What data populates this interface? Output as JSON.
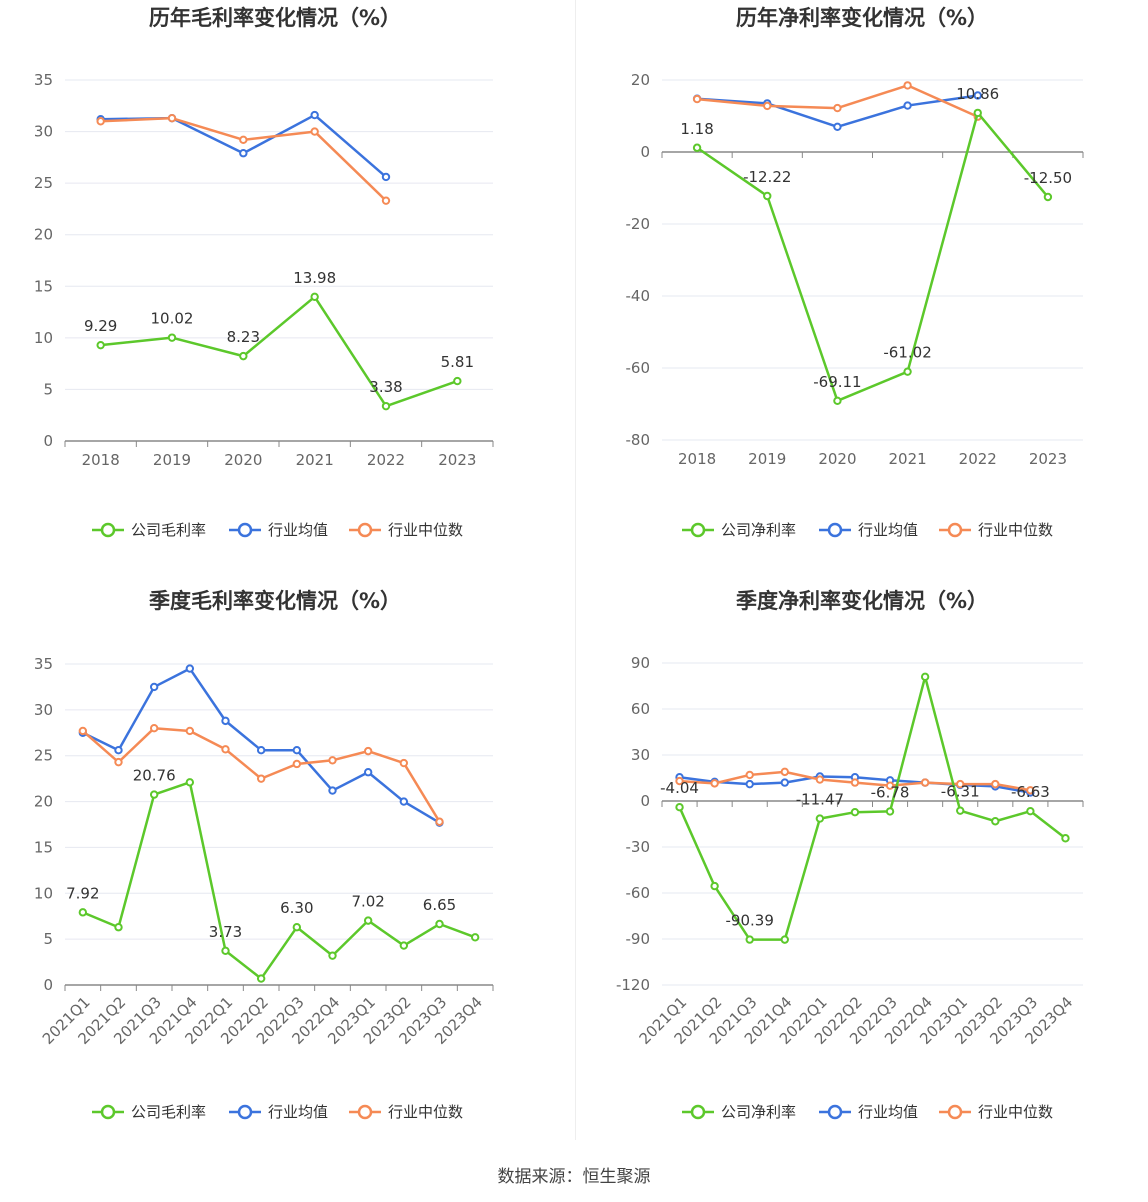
{
  "source_text": "数据来源：恒生聚源",
  "colors": {
    "company": "#5cc82b",
    "avg": "#3b73dd",
    "median": "#f58a55"
  },
  "chart_data": [
    {
      "type": "line",
      "title": "历年毛利率变化情况（%）",
      "x": [
        "2018",
        "2019",
        "2020",
        "2021",
        "2022",
        "2023"
      ],
      "ylim": [
        0,
        35
      ],
      "yticks": [
        0,
        5,
        10,
        15,
        20,
        25,
        30,
        35
      ],
      "grid": true,
      "legend": "bottom",
      "series": [
        {
          "name": "公司毛利率",
          "values": [
            9.29,
            10.02,
            8.23,
            13.98,
            3.38,
            5.81
          ],
          "labels": [
            "9.29",
            "10.02",
            "8.23",
            "13.98",
            "3.38",
            "5.81"
          ]
        },
        {
          "name": "行业均值",
          "values": [
            31.2,
            31.3,
            27.9,
            31.6,
            25.6,
            null
          ],
          "labels": []
        },
        {
          "name": "行业中位数",
          "values": [
            31.0,
            31.3,
            29.2,
            30.0,
            23.3,
            null
          ],
          "labels": []
        }
      ]
    },
    {
      "type": "line",
      "title": "历年净利率变化情况（%）",
      "x": [
        "2018",
        "2019",
        "2020",
        "2021",
        "2022",
        "2023"
      ],
      "ylim": [
        -80,
        20
      ],
      "yticks": [
        -80,
        -60,
        -40,
        -20,
        0,
        20
      ],
      "grid": true,
      "legend": "bottom",
      "series": [
        {
          "name": "公司净利率",
          "values": [
            1.18,
            -12.22,
            -69.11,
            -61.02,
            10.86,
            -12.5
          ],
          "labels": [
            "1.18",
            "-12.22",
            "-69.11",
            "-61.02",
            "10.86",
            "-12.50"
          ]
        },
        {
          "name": "行业均值",
          "values": [
            14.8,
            13.5,
            7.0,
            12.9,
            15.7,
            null
          ],
          "labels": []
        },
        {
          "name": "行业中位数",
          "values": [
            14.7,
            12.8,
            12.2,
            18.5,
            9.8,
            null
          ],
          "labels": []
        }
      ]
    },
    {
      "type": "line",
      "title": "季度毛利率变化情况（%）",
      "x": [
        "2021Q1",
        "2021Q2",
        "2021Q3",
        "2021Q4",
        "2022Q1",
        "2022Q2",
        "2022Q3",
        "2022Q4",
        "2023Q1",
        "2023Q2",
        "2023Q3",
        "2023Q4"
      ],
      "ylim": [
        0,
        35
      ],
      "yticks": [
        0,
        5,
        10,
        15,
        20,
        25,
        30,
        35
      ],
      "grid": true,
      "legend": "bottom",
      "series": [
        {
          "name": "公司毛利率",
          "values": [
            7.92,
            6.3,
            20.76,
            22.1,
            3.73,
            0.7,
            6.3,
            3.2,
            7.02,
            4.3,
            6.65,
            5.2
          ],
          "labels": [
            "7.92",
            "",
            "20.76",
            "",
            "3.73",
            "",
            "6.30",
            "",
            "7.02",
            "",
            "6.65",
            ""
          ]
        },
        {
          "name": "行业均值",
          "values": [
            27.5,
            25.6,
            32.5,
            34.5,
            28.8,
            25.6,
            25.6,
            21.2,
            23.2,
            20.0,
            17.7,
            null
          ],
          "labels": []
        },
        {
          "name": "行业中位数",
          "values": [
            27.7,
            24.3,
            28.0,
            27.7,
            25.7,
            22.5,
            24.1,
            24.5,
            25.5,
            24.2,
            17.8,
            null
          ],
          "labels": []
        }
      ]
    },
    {
      "type": "line",
      "title": "季度净利率变化情况（%）",
      "x": [
        "2021Q1",
        "2021Q2",
        "2021Q3",
        "2021Q4",
        "2022Q1",
        "2022Q2",
        "2022Q3",
        "2022Q4",
        "2023Q1",
        "2023Q2",
        "2023Q3",
        "2023Q4"
      ],
      "ylim": [
        -120,
        90
      ],
      "yticks": [
        -120,
        -90,
        -60,
        -30,
        0,
        30,
        60,
        90
      ],
      "grid": true,
      "legend": "bottom",
      "series": [
        {
          "name": "公司净利率",
          "values": [
            -4.04,
            -55.5,
            -90.39,
            -90.4,
            -11.47,
            -7.3,
            -6.78,
            81.0,
            -6.31,
            -13.2,
            -6.63,
            -24.3
          ],
          "labels": [
            "-4.04",
            "",
            "-90.39",
            "",
            "-11.47",
            "",
            "-6.78",
            "",
            "-6.31",
            "",
            "-6.63",
            ""
          ]
        },
        {
          "name": "行业均值",
          "values": [
            15.5,
            12.5,
            11.0,
            12.0,
            16.0,
            15.5,
            13.5,
            12.0,
            10.5,
            9.5,
            5.5,
            null
          ],
          "labels": []
        },
        {
          "name": "行业中位数",
          "values": [
            13.0,
            11.5,
            17.0,
            19.0,
            14.0,
            12.0,
            10.0,
            12.0,
            11.0,
            11.0,
            7.0,
            null
          ],
          "labels": []
        }
      ]
    }
  ]
}
